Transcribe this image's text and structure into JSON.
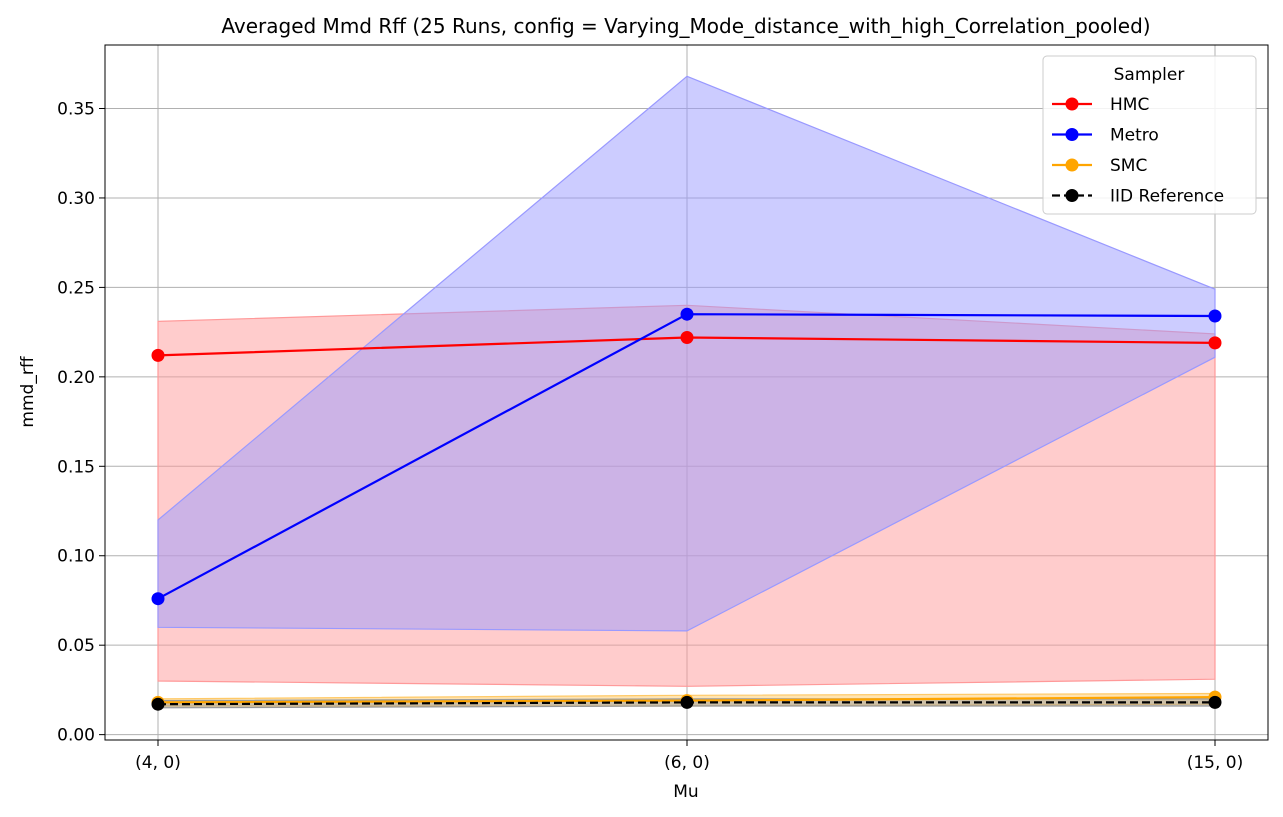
{
  "chart_data": {
    "type": "line",
    "title": "Averaged Mmd Rff (25 Runs, config = Varying_Mode_distance_with_high_Correlation_pooled)",
    "xlabel": "Mu",
    "ylabel": "mmd_rff",
    "categories": [
      "(4, 0)",
      "(6, 0)",
      "(15, 0)"
    ],
    "ylim": [
      -0.003,
      0.3855
    ],
    "yticks": [
      0.0,
      0.05,
      0.1,
      0.15,
      0.2,
      0.25,
      0.3,
      0.35
    ],
    "ytick_labels": [
      "0.00",
      "0.05",
      "0.10",
      "0.15",
      "0.20",
      "0.25",
      "0.30",
      "0.35"
    ],
    "grid": true,
    "legend": {
      "title": "Sampler",
      "placement": "top-right"
    },
    "series": [
      {
        "name": "HMC",
        "color": "#ff0000",
        "fill_color": "#ff9999",
        "dashed": false,
        "values": [
          0.212,
          0.222,
          0.219
        ],
        "lower": [
          0.03,
          0.027,
          0.031
        ],
        "upper": [
          0.231,
          0.24,
          0.224
        ]
      },
      {
        "name": "Metro",
        "color": "#0000ff",
        "fill_color": "#9999ff",
        "dashed": false,
        "values": [
          0.076,
          0.235,
          0.234
        ],
        "lower": [
          0.06,
          0.058,
          0.211
        ],
        "upper": [
          0.12,
          0.368,
          0.249
        ]
      },
      {
        "name": "SMC",
        "color": "#ffa500",
        "fill_color": "#ffc966",
        "dashed": false,
        "values": [
          0.018,
          0.019,
          0.021
        ],
        "lower": [
          0.016,
          0.016,
          0.017
        ],
        "upper": [
          0.02,
          0.022,
          0.023
        ]
      },
      {
        "name": "IID Reference",
        "color": "#000000",
        "fill_color": "#999999",
        "dashed": true,
        "values": [
          0.017,
          0.018,
          0.018
        ],
        "lower": [
          0.015,
          0.016,
          0.016
        ],
        "upper": [
          0.019,
          0.02,
          0.02
        ]
      }
    ]
  }
}
